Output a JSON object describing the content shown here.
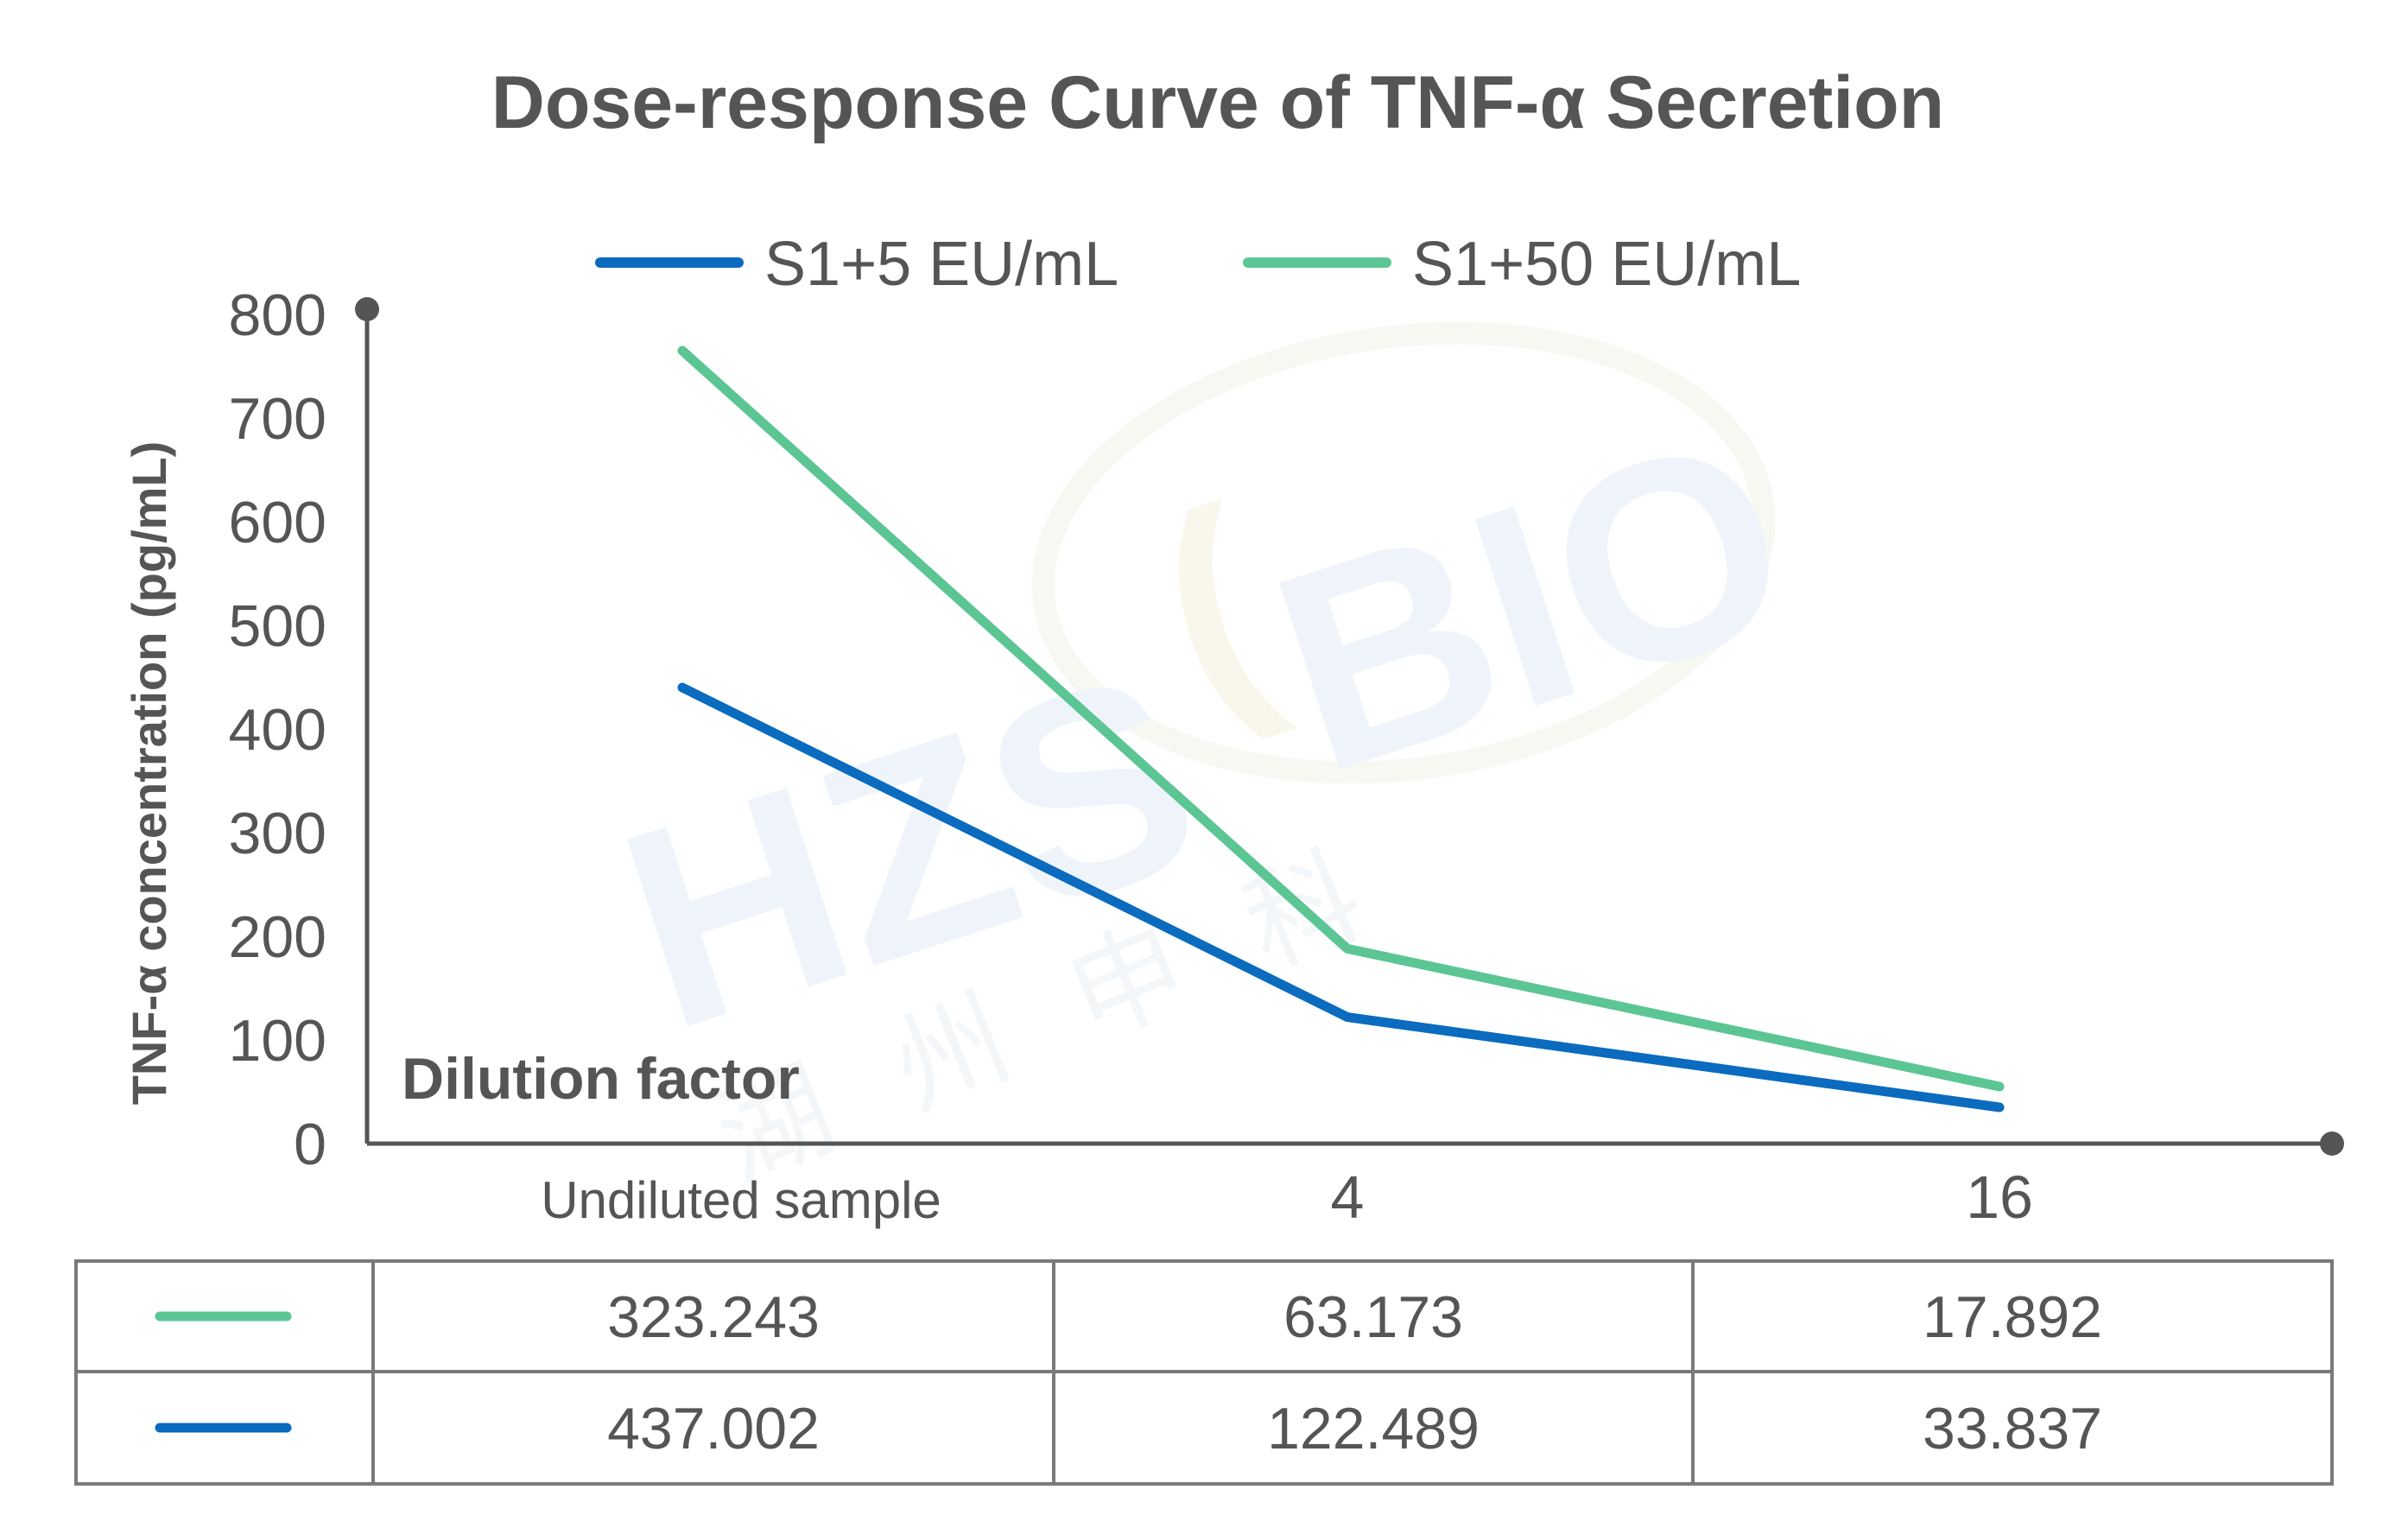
{
  "chart_data": {
    "type": "line",
    "title": "Dose-response Curve of TNF-α Secretion",
    "ylabel": "TNF-α concentration (pg/mL)",
    "xlabel": "Dilution factor",
    "categories": [
      "Undiluted sample",
      "4",
      "16"
    ],
    "ylim": [
      0,
      800
    ],
    "yticks": [
      0,
      100,
      200,
      300,
      400,
      500,
      600,
      700,
      800
    ],
    "legend_position": "top-center",
    "grid": false,
    "series": [
      {
        "name": "S1+5 EU/mL",
        "color": "#0a6bbf",
        "values": [
          440,
          122,
          35
        ]
      },
      {
        "name": "S1+50 EU/mL",
        "color": "#5cc594",
        "values": [
          765,
          188,
          55
        ]
      }
    ],
    "table": {
      "rows": [
        {
          "color": "#5cc594",
          "values": [
            "323.243",
            "63.173",
            "17.892"
          ]
        },
        {
          "color": "#0a6bbf",
          "values": [
            "437.002",
            "122.489",
            "33.837"
          ]
        }
      ]
    },
    "watermark": {
      "logo": "HZS BIO",
      "subtext": "湖州申科"
    }
  }
}
